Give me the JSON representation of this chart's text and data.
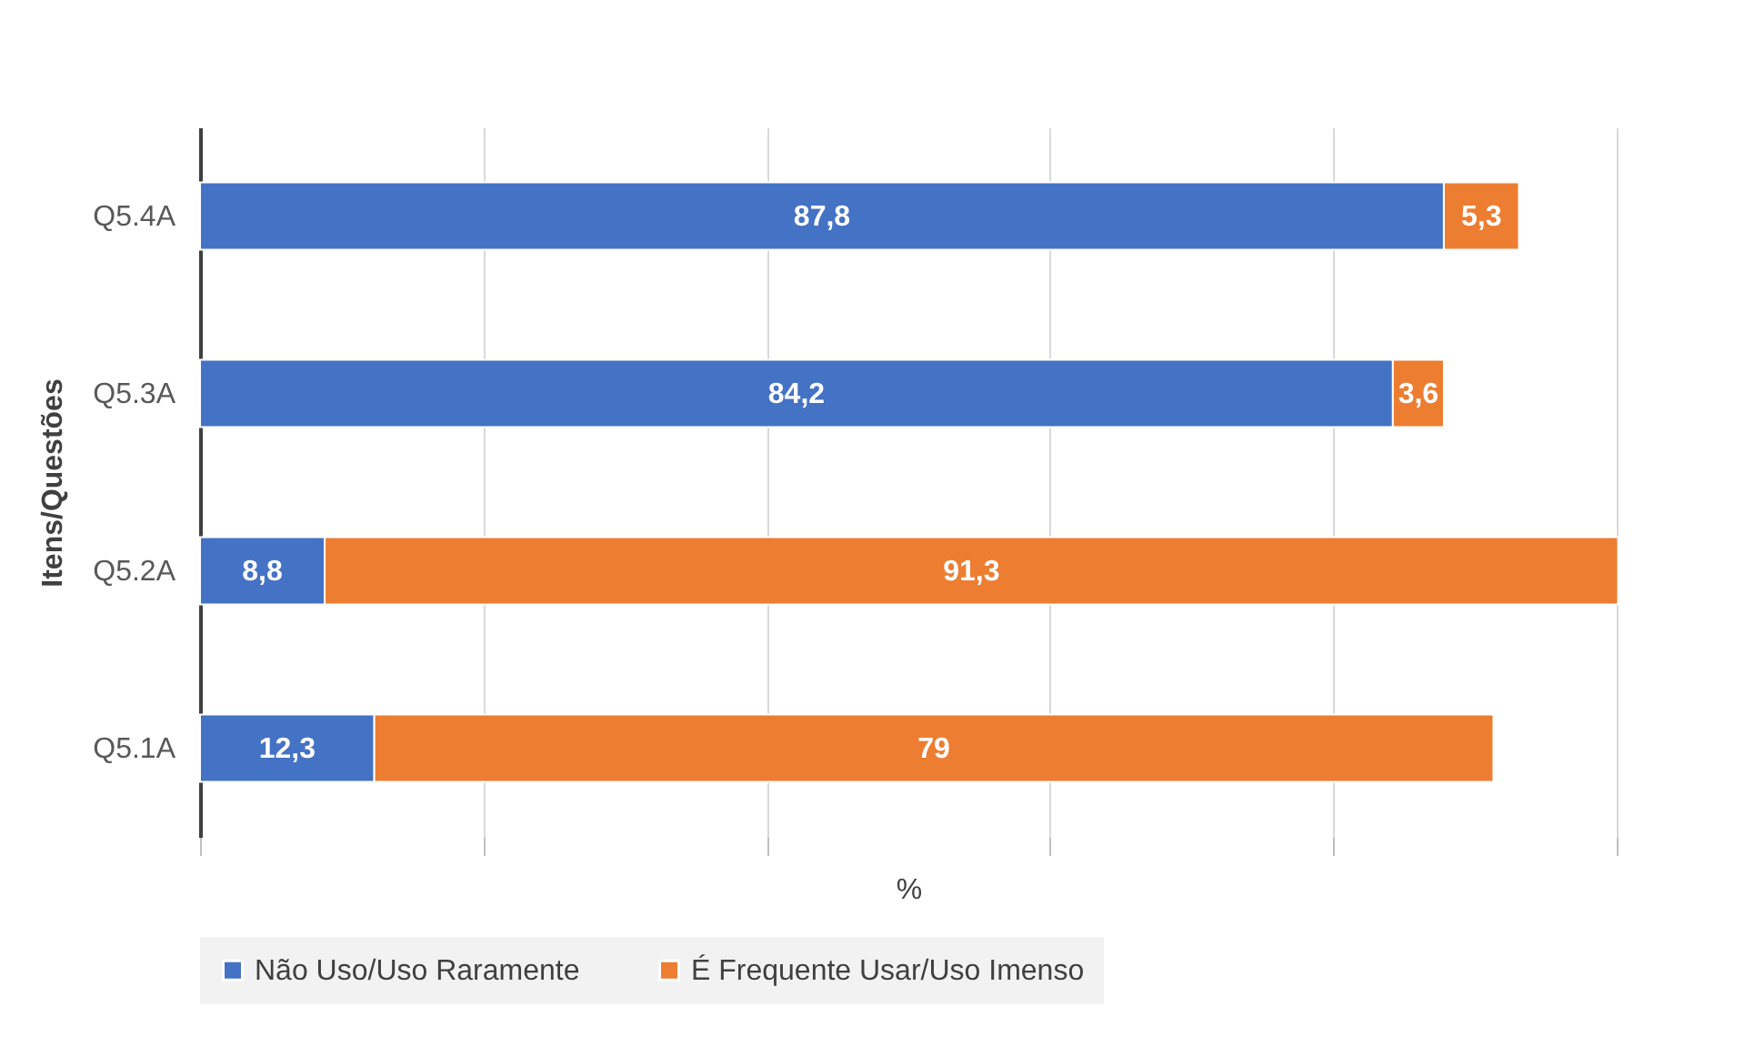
{
  "chart_data": {
    "type": "bar",
    "orientation": "horizontal",
    "stacked": true,
    "xlabel": "%",
    "ylabel": "Itens/Questões",
    "categories": [
      "Q5.4A",
      "Q5.3A",
      "Q5.2A",
      "Q5.1A"
    ],
    "series": [
      {
        "name": "Não Uso/Uso Raramente",
        "color": "#4472c4",
        "values": [
          87.8,
          84.2,
          8.8,
          12.3
        ],
        "value_labels": [
          "87,8",
          "84,2",
          "8,8",
          "12,3"
        ]
      },
      {
        "name": "É Frequente Usar/Uso Imenso",
        "color": "#ed7d31",
        "values": [
          5.3,
          3.6,
          91.3,
          79
        ],
        "value_labels": [
          "5,3",
          "3,6",
          "91,3",
          "79"
        ]
      }
    ],
    "xlim": [
      0,
      100
    ],
    "xticks": [
      {
        "value": 0,
        "label": null
      },
      {
        "value": 20,
        "label": null
      },
      {
        "value": 40,
        "label": null
      },
      {
        "value": 60,
        "label": null
      },
      {
        "value": 80,
        "label": null
      },
      {
        "value": 100,
        "label": null
      }
    ],
    "tick_labels": "y",
    "grid": "x",
    "legend": "bottom"
  }
}
